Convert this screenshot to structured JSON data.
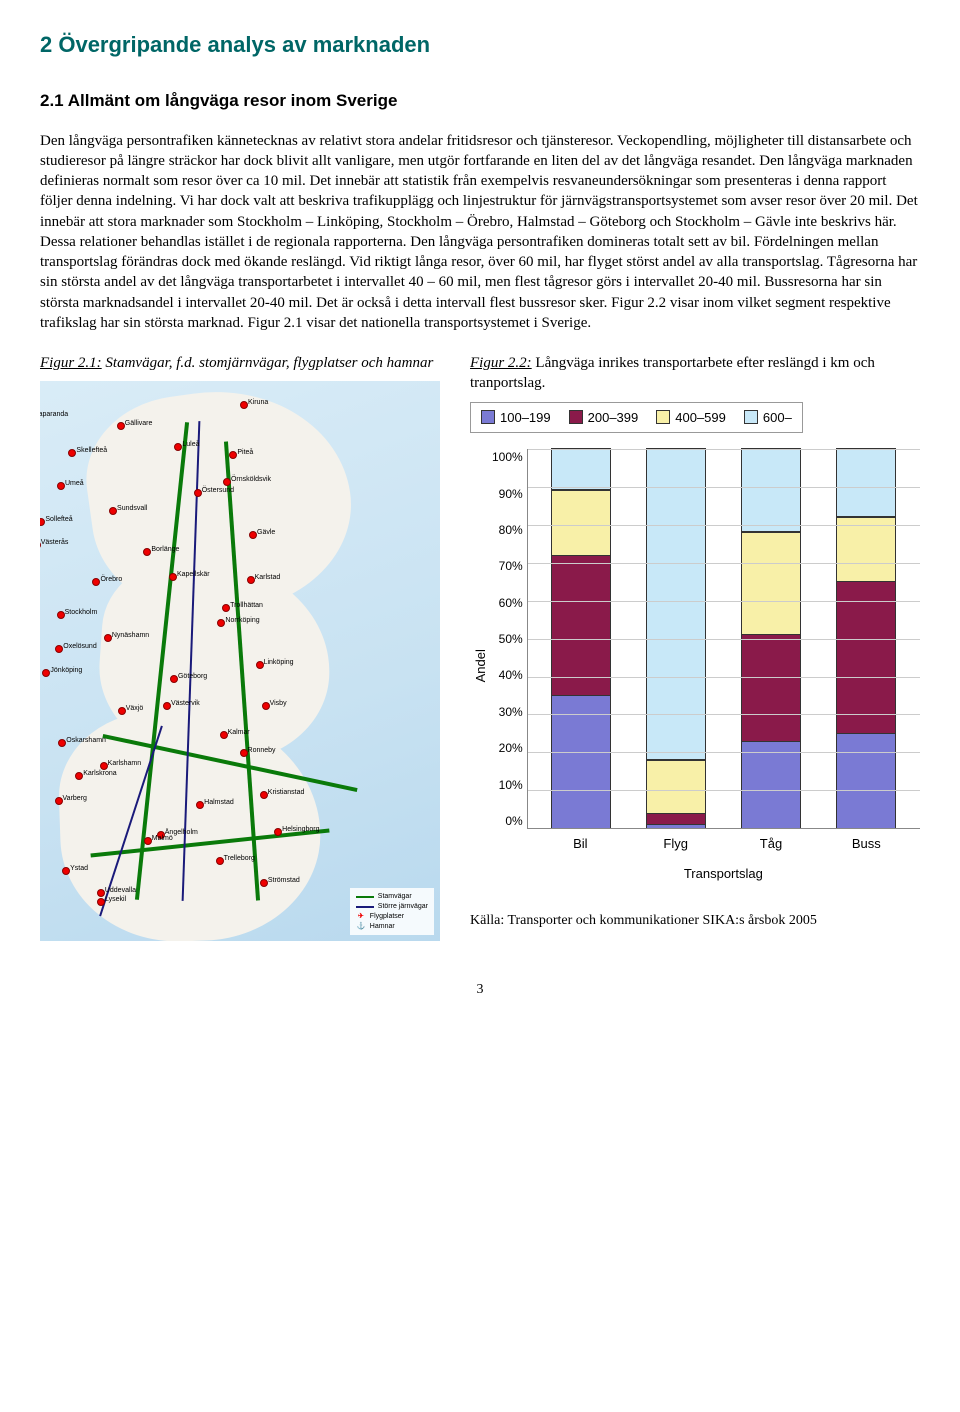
{
  "heading": "2 Övergripande analys av marknaden",
  "subheading": "2.1 Allmänt om långväga resor inom Sverige",
  "body_text": "Den långväga persontrafiken kännetecknas av relativt stora andelar fritidsresor och tjänsteresor. Veckopendling, möjligheter till distansarbete och studieresor på längre sträckor har dock blivit allt vanligare, men utgör fortfarande en liten del av det långväga resandet. Den långväga marknaden definieras normalt som resor över ca 10 mil. Det innebär att statistik från exempelvis resvaneundersökningar som presenteras i denna rapport följer denna indelning. Vi har dock valt att beskriva trafikupplägg och linjestruktur för järnvägstransportsystemet som avser resor över 20 mil. Det innebär att stora marknader som Stockholm – Linköping, Stockholm – Örebro, Halmstad – Göteborg och Stockholm – Gävle inte beskrivs här. Dessa relationer behandlas istället i de regionala rapporterna. Den långväga persontrafiken domineras totalt sett av bil. Fördelningen mellan transportslag förändras dock med ökande reslängd. Vid riktigt långa resor, över 60 mil, har flyget störst andel av alla transportslag. Tågresorna har sin största andel av det långväga transportarbetet i intervallet 40 – 60 mil, men flest tågresor görs i intervallet 20-40 mil. Bussresorna har sin största marknadsandel i intervallet 20-40 mil. Det är också i detta intervall flest bussresor sker. Figur 2.2 visar inom vilket segment respektive trafikslag har sin största marknad. Figur 2.1 visar det nationella transportsystemet i Sverige.",
  "fig1_label": "Figur 2.1:",
  "fig1_caption": " Stamvägar, f.d. stomjärnvägar, flygplatser och hamnar",
  "fig2_label": "Figur 2.2:",
  "fig2_caption": " Långväga inrikes transportarbete efter reslängd i km och tranportslag.",
  "map": {
    "cities": [
      "Kiruna",
      "Gällivare",
      "Haparanda",
      "Luleå",
      "Piteå",
      "Skellefteå",
      "Umeå",
      "Örnsköldsvik",
      "Östersund",
      "Sollefteå",
      "Sundsvall",
      "Gävle",
      "Borlänge",
      "Västerås",
      "Kapellskär",
      "Karlstad",
      "Örebro",
      "Stockholm",
      "Trollhättan",
      "Norrköping",
      "Oxelösund",
      "Nynäshamn",
      "Linköping",
      "Göteborg",
      "Jönköping",
      "Västervik",
      "Visby",
      "Växjö",
      "Oskarshamn",
      "Kalmar",
      "Ronneby",
      "Karlskrona",
      "Karlshamn",
      "Kristianstad",
      "Halmstad",
      "Varberg",
      "Ängelholm",
      "Helsingborg",
      "Malmö",
      "Ystad",
      "Trelleborg",
      "Strömstad",
      "Lysekil",
      "Uddevalla"
    ],
    "legend": {
      "roads": "Stamvägar",
      "rails": "Större järnvägar",
      "airports": "Flygplatser",
      "ports": "Hamnar"
    }
  },
  "chart": {
    "type": "stacked-bar",
    "legend": [
      {
        "label": "100–199",
        "color": "#7a7ad4"
      },
      {
        "label": "200–399",
        "color": "#8a1a4a"
      },
      {
        "label": "400–599",
        "color": "#f8f0a8"
      },
      {
        "label": "600–",
        "color": "#c8e8f8"
      }
    ],
    "ylabel": "Andel",
    "xlabel": "Transportslag",
    "ylim": [
      0,
      100
    ],
    "ytick_step": 10,
    "yticks": [
      "100%",
      "90%",
      "80%",
      "70%",
      "60%",
      "50%",
      "40%",
      "30%",
      "20%",
      "10%",
      "0%"
    ],
    "categories": [
      "Bil",
      "Flyg",
      "Tåg",
      "Buss"
    ],
    "series_order": [
      "100–199",
      "200–399",
      "400–599",
      "600–"
    ],
    "values": {
      "Bil": [
        35,
        37,
        17,
        11
      ],
      "Flyg": [
        1,
        3,
        14,
        82
      ],
      "Tåg": [
        23,
        28,
        27,
        22
      ],
      "Buss": [
        25,
        40,
        17,
        18
      ]
    },
    "grid_color": "#cccccc",
    "background_color": "#ffffff",
    "border_color": "#333333"
  },
  "source": "Källa: Transporter och kommunikationer SIKA:s årsbok 2005",
  "page_number": "3"
}
